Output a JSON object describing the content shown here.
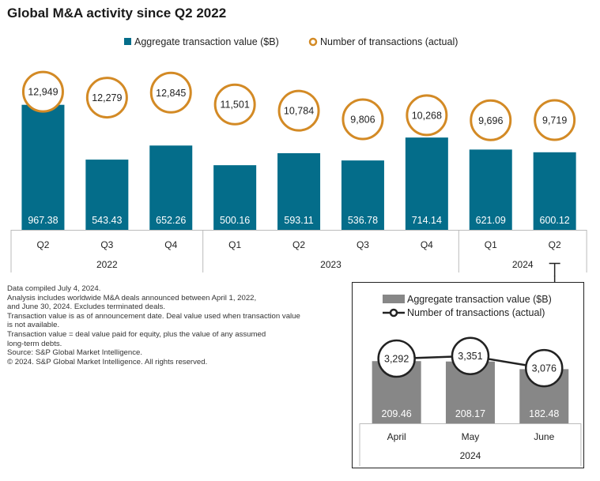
{
  "title": "Global M&A activity since Q2 2022",
  "colors": {
    "bar": "#046d8a",
    "circle": "#d38a25",
    "inset_bar": "#878787",
    "axis": "#bbbbbb",
    "text": "#222222"
  },
  "chart_data": [
    {
      "type": "bar",
      "title": "Global M&A activity since Q2 2022",
      "legend": [
        {
          "label": "Aggregate transaction value ($B)",
          "marker": "square"
        },
        {
          "label": "Number of transactions (actual)",
          "marker": "circle"
        }
      ],
      "categories": [
        "Q2",
        "Q3",
        "Q4",
        "Q1",
        "Q2",
        "Q3",
        "Q4",
        "Q1",
        "Q2"
      ],
      "groups": [
        {
          "label": "2022",
          "count": 3
        },
        {
          "label": "2023",
          "count": 4
        },
        {
          "label": "2024",
          "count": 2
        }
      ],
      "series": [
        {
          "name": "Aggregate transaction value ($B)",
          "values": [
            967.38,
            543.43,
            652.26,
            500.16,
            593.11,
            536.78,
            714.14,
            621.09,
            600.12
          ],
          "labels": [
            "967.38",
            "543.43",
            "652.26",
            "500.16",
            "593.11",
            "536.78",
            "714.14",
            "621.09",
            "600.12"
          ]
        },
        {
          "name": "Number of transactions (actual)",
          "values": [
            12949,
            12279,
            12845,
            11501,
            10784,
            9806,
            10268,
            9696,
            9719
          ],
          "labels": [
            "12,949",
            "12,279",
            "12,845",
            "11,501",
            "10,784",
            "9,806",
            "10,268",
            "9,696",
            "9,719"
          ]
        }
      ],
      "ylim": [
        0,
        1100
      ]
    },
    {
      "type": "bar",
      "legend": [
        {
          "label": "Aggregate transaction value ($B)",
          "marker": "square"
        },
        {
          "label": "Number of transactions (actual)",
          "marker": "line-circle"
        }
      ],
      "categories": [
        "April",
        "May",
        "June"
      ],
      "groups": [
        {
          "label": "2024",
          "count": 3
        }
      ],
      "series": [
        {
          "name": "Aggregate transaction value ($B)",
          "values": [
            209.46,
            208.17,
            182.48
          ],
          "labels": [
            "209.46",
            "208.17",
            "182.48"
          ]
        },
        {
          "name": "Number of transactions (actual)",
          "values": [
            3292,
            3351,
            3076
          ],
          "labels": [
            "3,292",
            "3,351",
            "3,076"
          ]
        }
      ],
      "ylim": [
        0,
        234
      ]
    }
  ],
  "notes": [
    "Data compiled July 4, 2024.",
    "Analysis includes worldwide M&A deals announced between April 1, 2022,",
    "and June 30, 2024. Excludes terminated deals.",
    "Transaction value is as of announcement date. Deal value used when transaction value",
    "is not available.",
    "Transaction value = deal value paid for equity, plus the value of any assumed",
    "long-term debts.",
    "Source: S&P Global Market Intelligence.",
    "© 2024. S&P Global Market Intelligence. All rights reserved."
  ]
}
